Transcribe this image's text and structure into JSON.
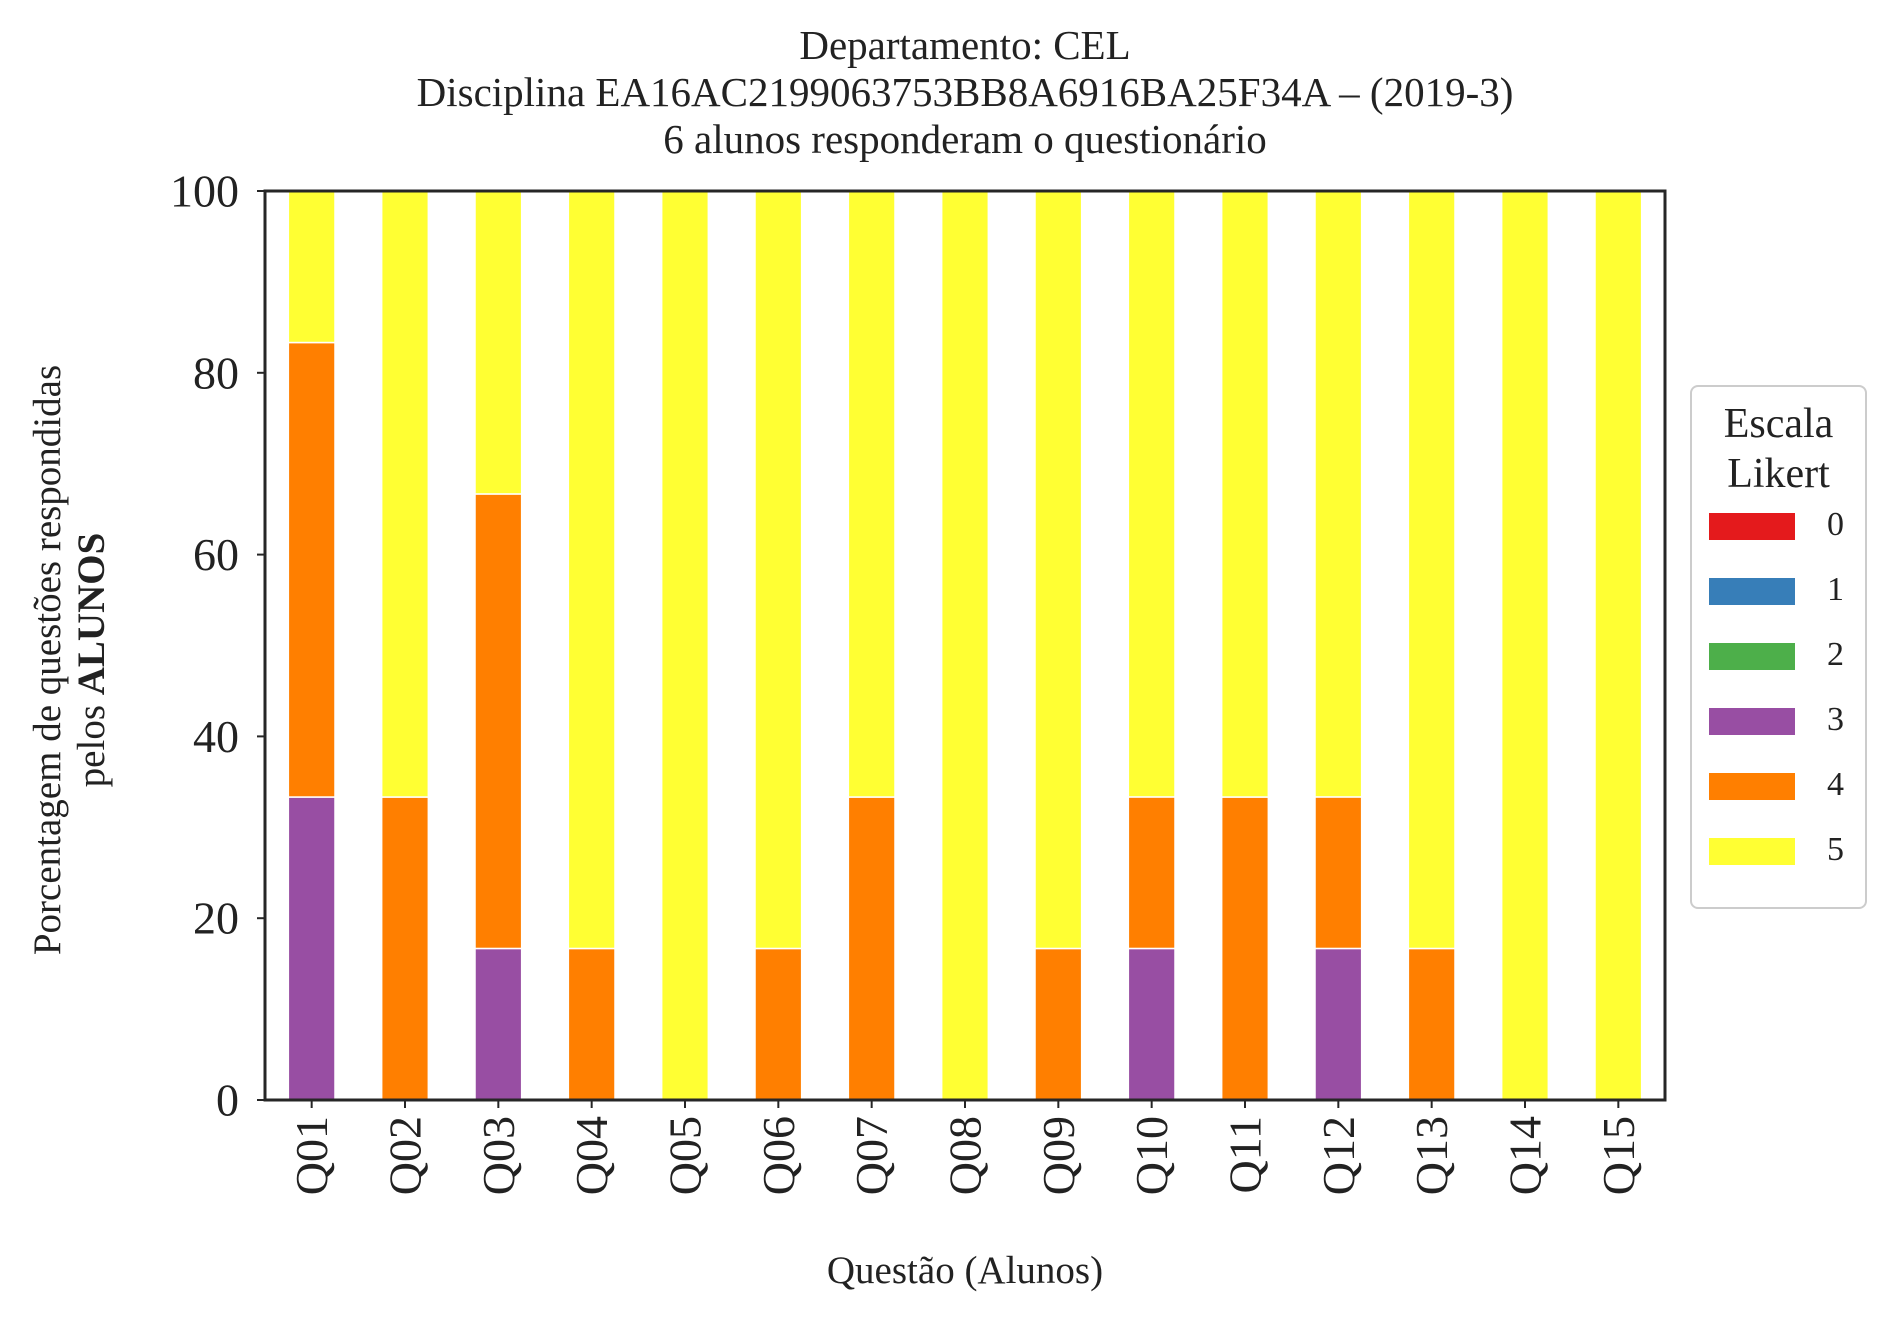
{
  "chart_data": {
    "type": "bar",
    "stacked": true,
    "title_lines": [
      "Departamento: CEL",
      "Disciplina EA16AC2199063753BB8A6916BA25F34A – (2019-3)",
      "6 alunos responderam o questionário"
    ],
    "ylabel_line1": "Porcentagem de questões respondidas",
    "ylabel_line2_prefix": "pelos ",
    "ylabel_line2_bold": "ALUNOS",
    "xlabel": "Questão (Alunos)",
    "ylim": [
      0,
      100
    ],
    "yticks": [
      0,
      20,
      40,
      60,
      80,
      100
    ],
    "grid": false,
    "legend_title_lines": [
      "Escala",
      "Likert"
    ],
    "legend_position": "right",
    "categories": [
      "Q01",
      "Q02",
      "Q03",
      "Q04",
      "Q05",
      "Q06",
      "Q07",
      "Q08",
      "Q09",
      "Q10",
      "Q11",
      "Q12",
      "Q13",
      "Q14",
      "Q15"
    ],
    "series": [
      {
        "name": "0",
        "color": "#e41a1c",
        "values": [
          0,
          0,
          0,
          0,
          0,
          0,
          0,
          0,
          0,
          0,
          0,
          0,
          0,
          0,
          0
        ]
      },
      {
        "name": "1",
        "color": "#377eb8",
        "values": [
          0,
          0,
          0,
          0,
          0,
          0,
          0,
          0,
          0,
          0,
          0,
          0,
          0,
          0,
          0
        ]
      },
      {
        "name": "2",
        "color": "#4daf4a",
        "values": [
          0,
          0,
          0,
          0,
          0,
          0,
          0,
          0,
          0,
          0,
          0,
          0,
          0,
          0,
          0
        ]
      },
      {
        "name": "3",
        "color": "#984ea3",
        "values": [
          33.33,
          0,
          16.67,
          0,
          0,
          0,
          0,
          0,
          0,
          16.67,
          0,
          16.67,
          0,
          0,
          0
        ]
      },
      {
        "name": "4",
        "color": "#ff7f00",
        "values": [
          50,
          33.33,
          50,
          16.67,
          0,
          16.67,
          33.33,
          0,
          16.67,
          16.67,
          33.33,
          16.67,
          16.67,
          0,
          0
        ]
      },
      {
        "name": "5",
        "color": "#ffff33",
        "values": [
          16.67,
          66.67,
          33.33,
          83.33,
          100,
          83.33,
          66.67,
          100,
          83.33,
          66.67,
          66.67,
          66.67,
          83.33,
          100,
          100
        ]
      }
    ]
  }
}
